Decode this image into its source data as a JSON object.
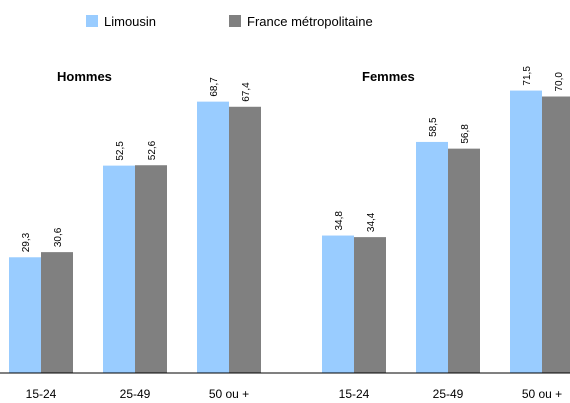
{
  "colors": {
    "limousin": "#99ccff",
    "france": "#808080",
    "axis": "#000000"
  },
  "chart_data": {
    "type": "bar",
    "title": "",
    "xlabel": "",
    "ylabel": "",
    "ylim": [
      0,
      80
    ],
    "grid": false,
    "legend_position": "top-left",
    "groups": [
      {
        "title": "Hommes",
        "categories": [
          "15-24",
          "25-49",
          "50 ou +"
        ]
      },
      {
        "title": "Femmes",
        "categories": [
          "15-24",
          "25-49",
          "50 ou +"
        ]
      }
    ],
    "series": [
      {
        "name": "Limousin",
        "values": [
          29.3,
          52.5,
          68.7,
          34.8,
          58.5,
          71.5
        ],
        "labels": [
          "29,3",
          "52,5",
          "68,7",
          "34,8",
          "58,5",
          "71,5"
        ]
      },
      {
        "name": "France métropolitaine",
        "values": [
          30.6,
          52.6,
          67.4,
          34.4,
          56.8,
          70.0
        ],
        "labels": [
          "30,6",
          "52,6",
          "67,4",
          "34,4",
          "56,8",
          "70,0"
        ]
      }
    ]
  }
}
